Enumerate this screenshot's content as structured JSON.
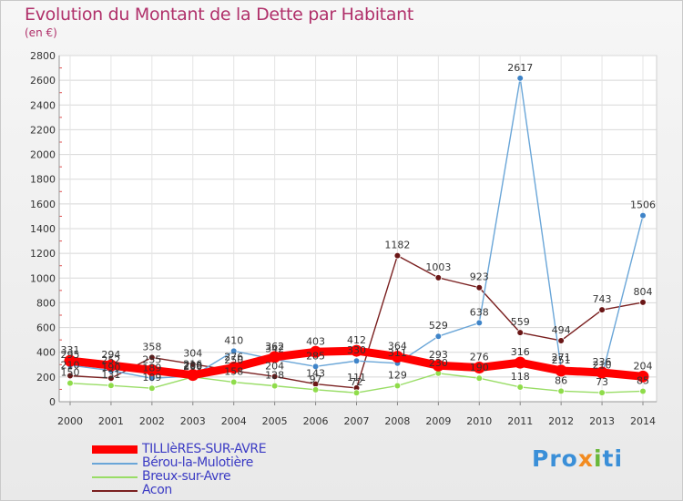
{
  "header": {
    "title": "Evolution du Montant de la Dette par Habitant",
    "unit": "(en €)"
  },
  "logo": {
    "text": "Proxiti"
  },
  "colors": {
    "tillieres": "#ff0000",
    "berou": "#6aa6d8",
    "breux": "#99dd66",
    "acon": "#7a2020",
    "title": "#b0306a",
    "legend_text": "#3b3bc4"
  },
  "chart_data": {
    "type": "line",
    "title": "Evolution du Montant de la Dette par Habitant",
    "ylabel": "(en €)",
    "xlabel": "",
    "x": [
      "2000",
      "2001",
      "2002",
      "2003",
      "2004",
      "2005",
      "2006",
      "2007",
      "2008",
      "2009",
      "2010",
      "2011",
      "2012",
      "2013",
      "2014"
    ],
    "ylim": [
      0,
      2800
    ],
    "yticks": [
      0,
      200,
      400,
      600,
      800,
      1000,
      1200,
      1400,
      1600,
      1800,
      2000,
      2200,
      2400,
      2600,
      2800
    ],
    "grid": true,
    "legend_position": "bottom-left",
    "series": [
      {
        "name": "TILLIèRES-SUR-AVRE",
        "key": "tillieres",
        "values": [
          331,
          294,
          255,
          216,
          276,
          362,
          403,
          412,
          364,
          293,
          276,
          316,
          251,
          236,
          204
        ]
      },
      {
        "name": "Bérou-la-Mulotière",
        "key": "berou",
        "values": [
          295,
          252,
          189,
          208,
          410,
          342,
          285,
          330,
          311,
          529,
          638,
          2617,
          271,
          210,
          1506
        ]
      },
      {
        "name": "Breux-sur-Avre",
        "key": "breux",
        "values": [
          150,
          131,
          109,
          200,
          158,
          128,
          97,
          72,
          129,
          230,
          190,
          118,
          86,
          73,
          85
        ]
      },
      {
        "name": "Acon",
        "key": "acon",
        "values": [
          210,
          190,
          358,
          304,
          250,
          204,
          143,
          111,
          1182,
          1003,
          923,
          559,
          494,
          743,
          804
        ]
      }
    ]
  }
}
